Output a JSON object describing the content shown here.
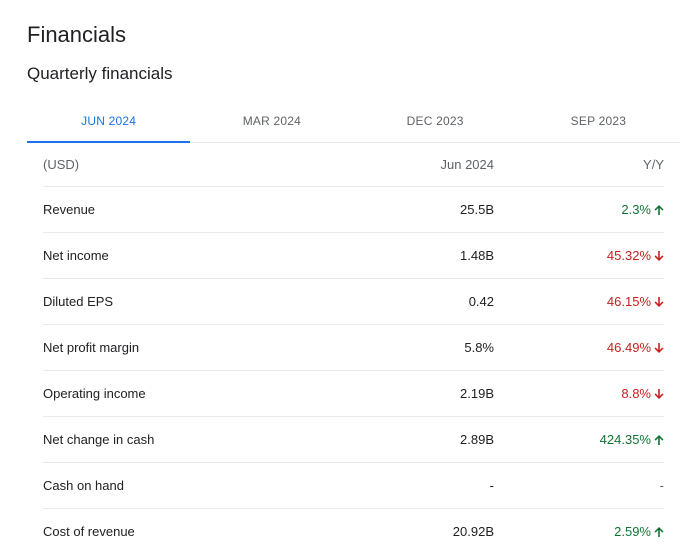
{
  "page": {
    "title": "Financials",
    "subtitle": "Quarterly financials"
  },
  "tabs": [
    {
      "label": "JUN 2024",
      "active": true
    },
    {
      "label": "MAR 2024",
      "active": false
    },
    {
      "label": "DEC 2023",
      "active": false
    },
    {
      "label": "SEP 2023",
      "active": false
    }
  ],
  "table": {
    "header": {
      "label": "(USD)",
      "value": "Jun 2024",
      "change": "Y/Y"
    },
    "rows": [
      {
        "label": "Revenue",
        "value": "25.5B",
        "change": "2.3%",
        "direction": "up"
      },
      {
        "label": "Net income",
        "value": "1.48B",
        "change": "45.32%",
        "direction": "down"
      },
      {
        "label": "Diluted EPS",
        "value": "0.42",
        "change": "46.15%",
        "direction": "down"
      },
      {
        "label": "Net profit margin",
        "value": "5.8%",
        "change": "46.49%",
        "direction": "down"
      },
      {
        "label": "Operating income",
        "value": "2.19B",
        "change": "8.8%",
        "direction": "down"
      },
      {
        "label": "Net change in cash",
        "value": "2.89B",
        "change": "424.35%",
        "direction": "up"
      },
      {
        "label": "Cash on hand",
        "value": "-",
        "change": "-",
        "direction": "none"
      },
      {
        "label": "Cost of revenue",
        "value": "20.92B",
        "change": "2.59%",
        "direction": "up"
      }
    ]
  },
  "colors": {
    "accent": "#1a73e8",
    "positive": "#137333",
    "negative": "#c5221f"
  }
}
